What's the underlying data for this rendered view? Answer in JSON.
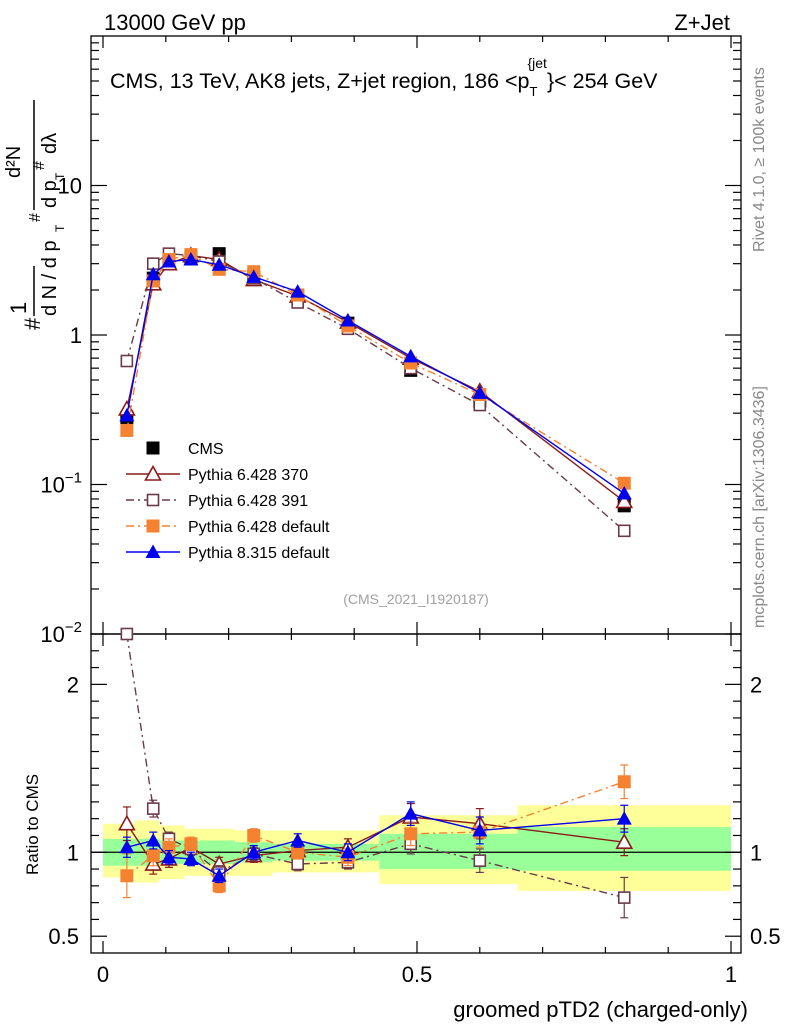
{
  "header": {
    "energy_label": "13000 GeV pp",
    "process_label": "Z+Jet"
  },
  "side_text": {
    "rivet": "Rivet 4.1.0, ≥ 100k events",
    "mcplots": "mcplots.cern.ch [arXiv:1306.3436]"
  },
  "chart_data": {
    "type": "line",
    "title": "CMS, 13 TeV, AK8 jets, Z+jet region, 186 <p_T^{jet}< 254 GeV",
    "title_parts": {
      "main": "CMS, 13 TeV, AK8 jets, Z+jet region, 186 <p",
      "sub": "T",
      "sup": "{jet",
      "tail": "}< 254 GeV"
    },
    "xlabel": "groomed pTD2 (charged-only)",
    "ylabel_main": "1/dN d²N/dp_T dλ",
    "ylabel_ratio": "Ratio to CMS",
    "analysis_id": "(CMS_2021_I1920187)",
    "xlim": [
      0,
      1
    ],
    "ylim_main": [
      0.01,
      100
    ],
    "ylim_ratio": [
      0.4,
      2.3
    ],
    "x_ticks": [
      0,
      0.5,
      1
    ],
    "x_tick_labels": [
      "0",
      "0.5",
      "1"
    ],
    "y_ticks_main": [
      0.01,
      0.1,
      1,
      10
    ],
    "y_tick_labels_main": [
      "10^-2",
      "10^-1",
      "1",
      "10"
    ],
    "y_ticks_ratio": [
      0.5,
      1,
      2
    ],
    "y_tick_labels_ratio": [
      "0.5",
      "1",
      "2"
    ],
    "legend_position": "lower-left",
    "data": {
      "name": "CMS",
      "color": "#000000",
      "marker": "square-filled",
      "x": [
        0.038,
        0.08,
        0.105,
        0.14,
        0.185,
        0.24,
        0.31,
        0.39,
        0.49,
        0.6,
        0.83
      ],
      "values": [
        0.28,
        2.4,
        3.1,
        3.3,
        3.5,
        2.45,
        1.85,
        1.2,
        0.58,
        0.36,
        0.072
      ],
      "ratio_band_inner": [
        {
          "x0": 0.0,
          "x1": 0.09,
          "lo": 0.92,
          "hi": 1.08
        },
        {
          "x0": 0.09,
          "x1": 0.13,
          "lo": 0.93,
          "hi": 1.07
        },
        {
          "x0": 0.13,
          "x1": 0.21,
          "lo": 0.93,
          "hi": 1.07
        },
        {
          "x0": 0.21,
          "x1": 0.27,
          "lo": 0.94,
          "hi": 1.06
        },
        {
          "x0": 0.27,
          "x1": 0.44,
          "lo": 0.95,
          "hi": 1.05
        },
        {
          "x0": 0.44,
          "x1": 0.66,
          "lo": 0.9,
          "hi": 1.11
        },
        {
          "x0": 0.66,
          "x1": 1.0,
          "lo": 0.89,
          "hi": 1.15
        }
      ],
      "ratio_band_outer": [
        {
          "x0": 0.0,
          "x1": 0.05,
          "lo": 0.85,
          "hi": 1.17
        },
        {
          "x0": 0.05,
          "x1": 0.09,
          "lo": 0.82,
          "hi": 1.19
        },
        {
          "x0": 0.09,
          "x1": 0.13,
          "lo": 0.84,
          "hi": 1.16
        },
        {
          "x0": 0.13,
          "x1": 0.21,
          "lo": 0.86,
          "hi": 1.14
        },
        {
          "x0": 0.21,
          "x1": 0.27,
          "lo": 0.86,
          "hi": 1.13
        },
        {
          "x0": 0.27,
          "x1": 0.44,
          "lo": 0.88,
          "hi": 1.13
        },
        {
          "x0": 0.44,
          "x1": 0.66,
          "lo": 0.81,
          "hi": 1.22
        },
        {
          "x0": 0.66,
          "x1": 1.0,
          "lo": 0.77,
          "hi": 1.28
        }
      ]
    },
    "series": [
      {
        "name": "Pythia 6.428 370",
        "color": "#8b1a1a",
        "marker": "triangle-open",
        "dash": "solid",
        "x": [
          0.038,
          0.08,
          0.105,
          0.14,
          0.185,
          0.24,
          0.31,
          0.39,
          0.49,
          0.6,
          0.83
        ],
        "values": [
          0.32,
          2.2,
          3.0,
          3.4,
          3.2,
          2.35,
          1.82,
          1.22,
          0.7,
          0.42,
          0.077
        ],
        "ratio": [
          1.17,
          0.93,
          0.96,
          1.03,
          0.93,
          0.98,
          1.01,
          1.03,
          1.21,
          1.17,
          1.06
        ],
        "ratio_err": [
          0.1,
          0.06,
          0.05,
          0.04,
          0.04,
          0.04,
          0.04,
          0.05,
          0.08,
          0.09,
          0.08
        ]
      },
      {
        "name": "Pythia 6.428 391",
        "color": "#6b3a4a",
        "marker": "square-open",
        "dash": "dashdot",
        "x": [
          0.038,
          0.08,
          0.105,
          0.14,
          0.185,
          0.24,
          0.31,
          0.39,
          0.49,
          0.6,
          0.83
        ],
        "values": [
          0.67,
          3.0,
          3.5,
          3.4,
          3.1,
          2.4,
          1.65,
          1.1,
          0.6,
          0.34,
          0.049
        ],
        "ratio": [
          2.38,
          1.26,
          1.08,
          1.02,
          0.88,
          0.99,
          0.93,
          0.94,
          1.05,
          0.95,
          0.73
        ],
        "ratio_err": [
          0.05,
          0.05,
          0.04,
          0.04,
          0.04,
          0.04,
          0.04,
          0.04,
          0.06,
          0.07,
          0.12
        ]
      },
      {
        "name": "Pythia 6.428 default",
        "color": "#f58231",
        "marker": "square-filled",
        "dash": "dashdot",
        "x": [
          0.038,
          0.08,
          0.105,
          0.14,
          0.185,
          0.24,
          0.31,
          0.39,
          0.49,
          0.6,
          0.83
        ],
        "values": [
          0.23,
          2.3,
          3.2,
          3.45,
          2.75,
          2.65,
          1.85,
          1.15,
          0.65,
          0.4,
          0.102
        ],
        "ratio": [
          0.86,
          0.98,
          1.03,
          1.05,
          0.8,
          1.1,
          1.0,
          0.97,
          1.11,
          1.12,
          1.42
        ],
        "ratio_err": [
          0.13,
          0.06,
          0.05,
          0.04,
          0.04,
          0.04,
          0.04,
          0.05,
          0.07,
          0.09,
          0.1
        ]
      },
      {
        "name": "Pythia 8.315 default",
        "color": "#0000ee",
        "marker": "triangle-filled",
        "dash": "solid",
        "x": [
          0.038,
          0.08,
          0.105,
          0.14,
          0.185,
          0.24,
          0.31,
          0.39,
          0.49,
          0.6,
          0.83
        ],
        "values": [
          0.29,
          2.55,
          3.1,
          3.2,
          2.95,
          2.45,
          1.95,
          1.25,
          0.72,
          0.41,
          0.087
        ],
        "ratio": [
          1.03,
          1.07,
          0.97,
          0.96,
          0.86,
          1.0,
          1.07,
          1.0,
          1.23,
          1.13,
          1.2
        ],
        "ratio_err": [
          0.06,
          0.05,
          0.04,
          0.04,
          0.04,
          0.04,
          0.04,
          0.05,
          0.07,
          0.08,
          0.08
        ]
      }
    ]
  }
}
